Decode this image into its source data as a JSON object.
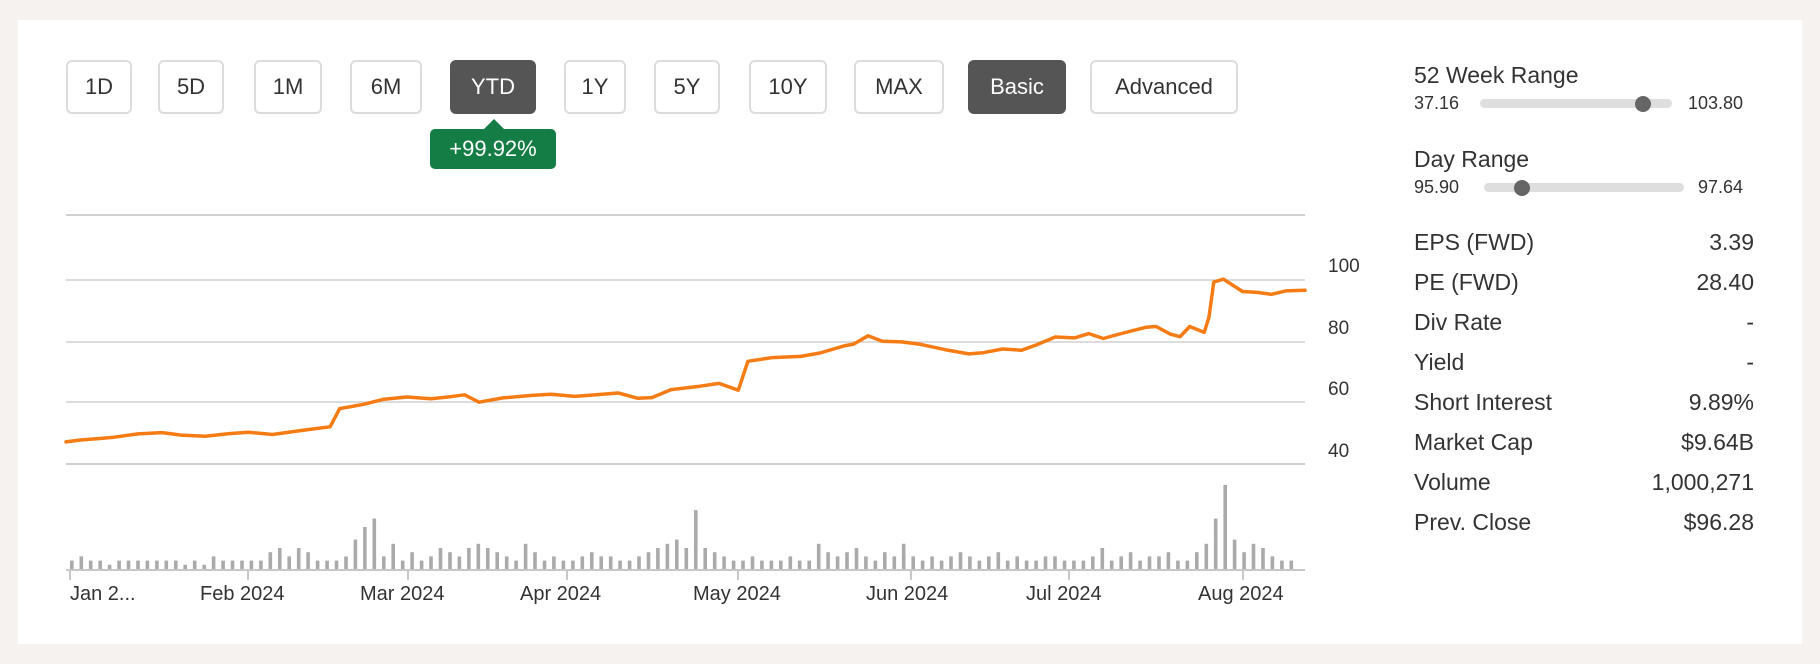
{
  "toolbar": {
    "periods": [
      {
        "label": "1D",
        "active": false
      },
      {
        "label": "5D",
        "active": false
      },
      {
        "label": "1M",
        "active": false
      },
      {
        "label": "6M",
        "active": false
      },
      {
        "label": "YTD",
        "active": true
      },
      {
        "label": "1Y",
        "active": false
      },
      {
        "label": "5Y",
        "active": false
      },
      {
        "label": "10Y",
        "active": false
      },
      {
        "label": "MAX",
        "active": false
      }
    ],
    "modes": [
      {
        "label": "Basic",
        "active": true
      },
      {
        "label": "Advanced",
        "active": false
      }
    ],
    "change_badge": "+99.92%",
    "badge_color": "#147c45",
    "active_color": "#555555"
  },
  "chart_data": {
    "type": "line",
    "line_color": "#f57c14",
    "volume_color": "#aaaaaa",
    "grid": true,
    "y_ticks": [
      "100",
      "80",
      "60",
      "40"
    ],
    "x_ticks": [
      "Jan 2...",
      "Feb 2024",
      "Mar 2024",
      "Apr 2024",
      "May 2024",
      "Jun 2024",
      "Jul 2024",
      "Aug 2024"
    ],
    "price_series": [
      [
        "2024-01-02",
        47.2
      ],
      [
        "2024-01-05",
        47.8
      ],
      [
        "2024-01-09",
        48.3
      ],
      [
        "2024-01-12",
        48.7
      ],
      [
        "2024-01-17",
        49.8
      ],
      [
        "2024-01-22",
        50.2
      ],
      [
        "2024-01-26",
        49.4
      ],
      [
        "2024-01-31",
        49.0
      ],
      [
        "2024-02-05",
        49.9
      ],
      [
        "2024-02-09",
        50.3
      ],
      [
        "2024-02-14",
        49.6
      ],
      [
        "2024-02-20",
        50.9
      ],
      [
        "2024-02-23",
        51.5
      ],
      [
        "2024-02-26",
        52.1
      ],
      [
        "2024-02-28",
        58.0
      ],
      [
        "2024-03-04",
        59.4
      ],
      [
        "2024-03-08",
        61.0
      ],
      [
        "2024-03-13",
        61.8
      ],
      [
        "2024-03-18",
        61.2
      ],
      [
        "2024-03-22",
        61.9
      ],
      [
        "2024-03-25",
        62.5
      ],
      [
        "2024-03-28",
        60.1
      ],
      [
        "2024-04-02",
        61.5
      ],
      [
        "2024-04-08",
        62.3
      ],
      [
        "2024-04-12",
        62.7
      ],
      [
        "2024-04-17",
        62.0
      ],
      [
        "2024-04-22",
        62.6
      ],
      [
        "2024-04-26",
        63.1
      ],
      [
        "2024-04-30",
        61.4
      ],
      [
        "2024-05-03",
        61.6
      ],
      [
        "2024-05-07",
        64.2
      ],
      [
        "2024-05-13",
        65.3
      ],
      [
        "2024-05-17",
        66.2
      ],
      [
        "2024-05-21",
        64.0
      ],
      [
        "2024-05-23",
        73.4
      ],
      [
        "2024-05-28",
        74.6
      ],
      [
        "2024-06-03",
        75.0
      ],
      [
        "2024-06-07",
        76.1
      ],
      [
        "2024-06-12",
        78.4
      ],
      [
        "2024-06-14",
        79.0
      ],
      [
        "2024-06-17",
        81.7
      ],
      [
        "2024-06-20",
        79.9
      ],
      [
        "2024-06-24",
        79.7
      ],
      [
        "2024-06-28",
        78.9
      ],
      [
        "2024-07-03",
        77.2
      ],
      [
        "2024-07-08",
        75.8
      ],
      [
        "2024-07-11",
        76.2
      ],
      [
        "2024-07-15",
        77.4
      ],
      [
        "2024-07-19",
        77.0
      ],
      [
        "2024-07-22",
        78.7
      ],
      [
        "2024-07-26",
        81.3
      ],
      [
        "2024-07-30",
        81.0
      ],
      [
        "2024-08-02",
        82.4
      ],
      [
        "2024-08-05",
        80.8
      ],
      [
        "2024-08-08",
        82.1
      ],
      [
        "2024-08-12",
        83.7
      ],
      [
        "2024-08-14",
        84.5
      ],
      [
        "2024-08-16",
        84.7
      ],
      [
        "2024-08-19",
        82.2
      ],
      [
        "2024-08-21",
        81.4
      ],
      [
        "2024-08-23",
        84.7
      ],
      [
        "2024-08-26",
        82.8
      ],
      [
        "2024-08-27",
        87.8
      ],
      [
        "2024-08-28",
        99.2
      ],
      [
        "2024-08-30",
        100.1
      ],
      [
        "2024-09-03",
        96.1
      ],
      [
        "2024-09-06",
        95.8
      ],
      [
        "2024-09-09",
        95.2
      ],
      [
        "2024-09-12",
        96.3
      ],
      [
        "2024-09-16",
        96.5
      ]
    ],
    "volume_series": [
      2,
      3,
      2,
      2,
      1,
      2,
      2,
      2,
      2,
      2,
      2,
      2,
      1,
      2,
      1,
      3,
      2,
      2,
      2,
      2,
      2,
      4,
      5,
      3,
      5,
      4,
      2,
      2,
      2,
      3,
      7,
      10,
      12,
      3,
      6,
      2,
      4,
      2,
      3,
      5,
      4,
      3,
      5,
      6,
      5,
      4,
      3,
      2,
      6,
      4,
      2,
      3,
      2,
      2,
      3,
      4,
      3,
      3,
      2,
      2,
      3,
      4,
      5,
      6,
      7,
      5,
      14,
      5,
      4,
      3,
      2,
      2,
      3,
      2,
      2,
      2,
      3,
      2,
      2,
      6,
      4,
      3,
      4,
      5,
      3,
      2,
      4,
      3,
      6,
      3,
      2,
      3,
      2,
      3,
      4,
      3,
      2,
      3,
      4,
      2,
      3,
      2,
      2,
      3,
      3,
      2,
      2,
      2,
      3,
      5,
      2,
      3,
      4,
      2,
      3,
      3,
      4,
      2,
      2,
      4,
      6,
      12,
      20,
      7,
      4,
      6,
      5,
      3,
      2,
      2
    ]
  },
  "stats": {
    "week52": {
      "label": "52 Week Range",
      "low": "37.16",
      "high": "103.80",
      "position": 0.85
    },
    "day": {
      "label": "Day Range",
      "low": "95.90",
      "high": "97.64",
      "position": 0.19
    },
    "rows": [
      {
        "label": "EPS (FWD)",
        "value": "3.39"
      },
      {
        "label": "PE (FWD)",
        "value": "28.40"
      },
      {
        "label": "Div Rate",
        "value": "-"
      },
      {
        "label": "Yield",
        "value": "-"
      },
      {
        "label": "Short Interest",
        "value": "9.89%"
      },
      {
        "label": "Market Cap",
        "value": "$9.64B"
      },
      {
        "label": "Volume",
        "value": "1,000,271"
      },
      {
        "label": "Prev. Close",
        "value": "$96.28"
      }
    ]
  }
}
